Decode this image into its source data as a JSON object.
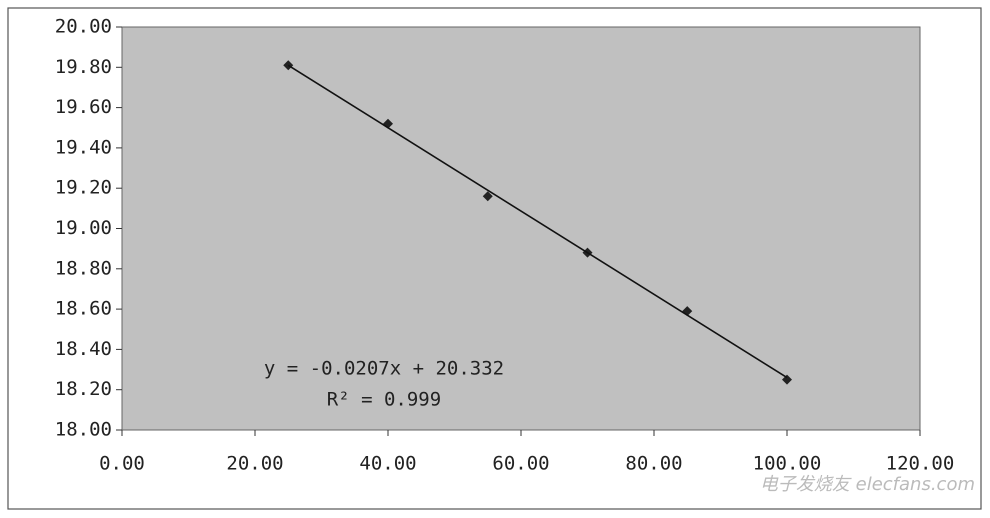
{
  "chart_data": {
    "type": "scatter",
    "series": [
      {
        "color": "#222222",
        "marker": "diamond",
        "x": [
          25,
          40,
          55,
          70,
          85,
          100
        ],
        "values": [
          19.81,
          19.52,
          19.16,
          18.88,
          18.59,
          18.25
        ]
      },
      {
        "color": "#111111",
        "marker": "none",
        "x": [
          25,
          100
        ],
        "values": [
          19.81,
          18.26
        ]
      }
    ],
    "annotations": [
      "y = -0.0207x + 20.332",
      "R² = 0.999"
    ],
    "watermark": "电子发烧友 elecfans.com",
    "xlim": [
      0,
      120
    ],
    "xticks": [
      {
        "value": 0,
        "label": "0.00"
      },
      {
        "value": 20,
        "label": "20.00"
      },
      {
        "value": 40,
        "label": "40.00"
      },
      {
        "value": 60,
        "label": "60.00"
      },
      {
        "value": 80,
        "label": "80.00"
      },
      {
        "value": 100,
        "label": "100.00"
      },
      {
        "value": 120,
        "label": "120.00"
      }
    ],
    "ylim": [
      18,
      20
    ],
    "yticks": [
      {
        "value": 18,
        "label": "18.00"
      },
      {
        "value": 18.2,
        "label": "18.20"
      },
      {
        "value": 18.4,
        "label": "18.40"
      },
      {
        "value": 18.6,
        "label": "18.60"
      },
      {
        "value": 18.8,
        "label": "18.80"
      },
      {
        "value": 19,
        "label": "19.00"
      },
      {
        "value": 19.2,
        "label": "19.20"
      },
      {
        "value": 19.4,
        "label": "19.40"
      },
      {
        "value": 19.6,
        "label": "19.60"
      },
      {
        "value": 19.8,
        "label": "19.80"
      },
      {
        "value": 20,
        "label": "20.00"
      }
    ],
    "plot_background": "#c0c0c0"
  }
}
